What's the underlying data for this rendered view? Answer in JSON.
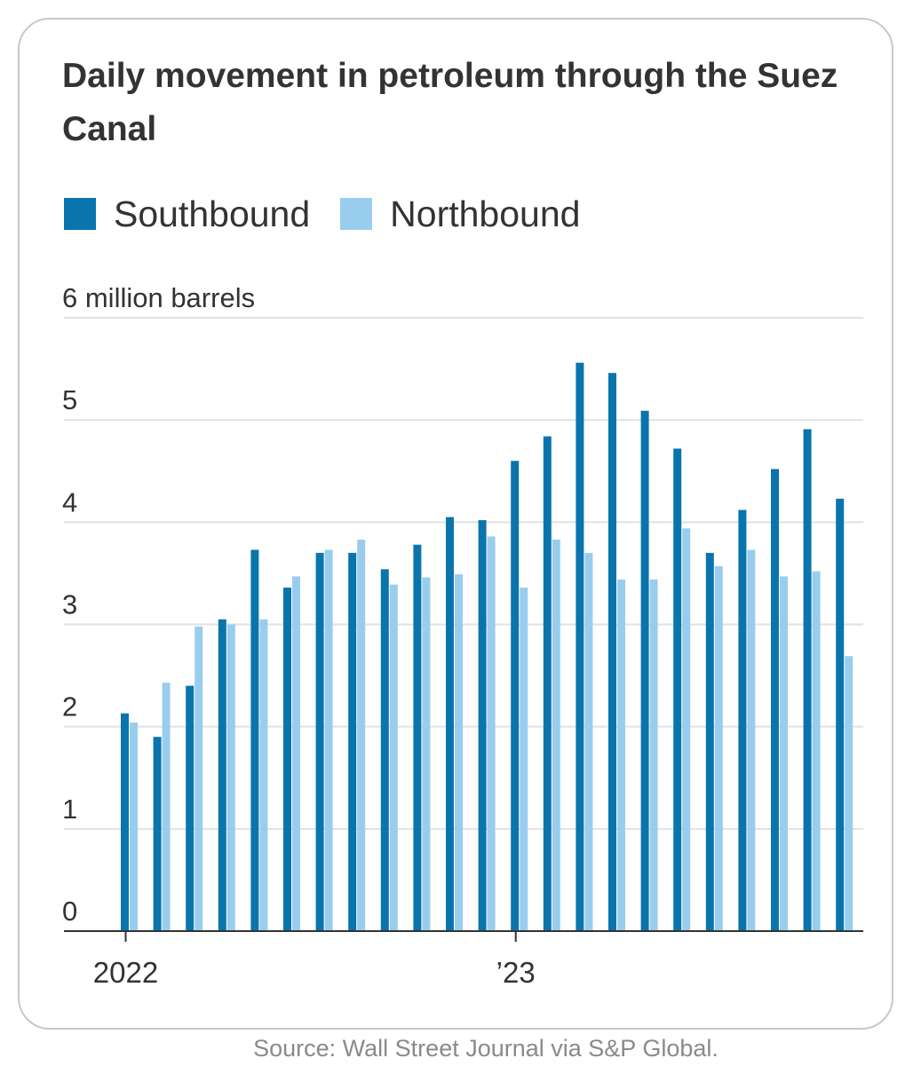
{
  "chart_data": {
    "type": "bar",
    "title": "Daily movement in petroleum through the Suez Canal",
    "unit_label": "6 million barrels",
    "ylim": [
      0,
      6
    ],
    "y_ticks": [
      {
        "value": 0,
        "label": "0"
      },
      {
        "value": 1,
        "label": "1"
      },
      {
        "value": 2,
        "label": "2"
      },
      {
        "value": 3,
        "label": "3"
      },
      {
        "value": 4,
        "label": "4"
      },
      {
        "value": 5,
        "label": "5"
      },
      {
        "value": 6,
        "label": "6 million barrels"
      }
    ],
    "x_ticks": [
      {
        "index": 0,
        "label": "2022"
      },
      {
        "index": 12,
        "label": "’23"
      }
    ],
    "legend_position": "top-left",
    "grid": true,
    "series": [
      {
        "name": "Southbound",
        "color": "#0a74ad",
        "values": [
          2.13,
          1.9,
          2.4,
          3.05,
          3.73,
          3.36,
          3.7,
          3.7,
          3.54,
          3.78,
          4.05,
          4.02,
          4.6,
          4.84,
          5.56,
          5.46,
          5.09,
          4.72,
          3.7,
          4.12,
          4.52,
          4.91,
          4.23
        ]
      },
      {
        "name": "Northbound",
        "color": "#99cdee",
        "values": [
          2.04,
          2.43,
          2.98,
          3.0,
          3.05,
          3.47,
          3.73,
          3.83,
          3.39,
          3.46,
          3.49,
          3.86,
          3.36,
          3.83,
          3.7,
          3.44,
          3.44,
          3.94,
          3.57,
          3.73,
          3.47,
          3.52,
          2.69
        ]
      }
    ]
  },
  "source": "Source: Wall Street Journal via S&P Global.",
  "colors": {
    "gridline": "#e2e2e2",
    "axis": "#333333",
    "text": "#333333",
    "source_text": "#8a8a8a"
  }
}
